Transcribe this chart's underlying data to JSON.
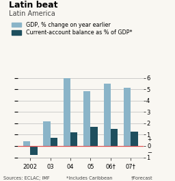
{
  "title": "Latin beat",
  "subtitle": "Latin America",
  "categories": [
    "2002",
    "03",
    "04",
    "05",
    "06†",
    "07†"
  ],
  "gdp": [
    0.4,
    2.2,
    6.2,
    4.8,
    5.5,
    5.1
  ],
  "current_account": [
    -0.8,
    0.7,
    1.2,
    1.7,
    1.5,
    1.3
  ],
  "gdp_color": "#8ab4c8",
  "ca_color": "#1e4f5e",
  "ylim": [
    -1,
    6
  ],
  "yticks": [
    -1,
    0,
    1,
    2,
    3,
    4,
    5,
    6
  ],
  "zero_line_color": "#e05050",
  "grid_color": "#bbbbbb",
  "background_color": "#f9f7f2",
  "title_bar_color": "#cc0000",
  "legend_gdp": "GDP, % change on year earlier",
  "legend_ca": "Current-account balance as % of GDP*",
  "bar_width": 0.35,
  "figsize": [
    2.56,
    2.64
  ],
  "dpi": 100
}
